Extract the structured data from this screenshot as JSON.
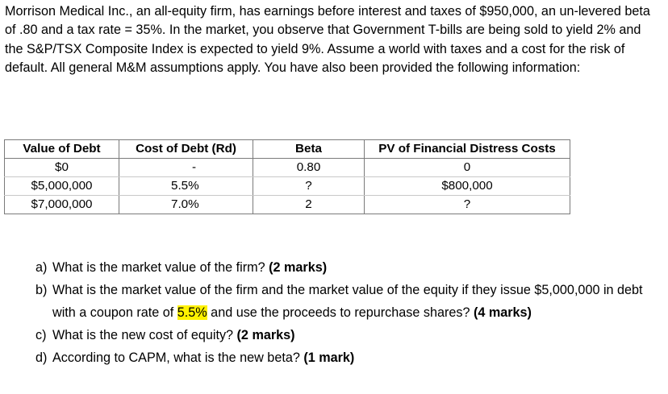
{
  "intro": "Morrison Medical Inc., an all-equity firm, has earnings before interest and taxes of $950,000, an un-levered beta of .80 and a tax rate = 35%.  In the market, you observe that Government T-bills are being sold to yield 2% and the S&P/TSX Composite Index is expected to yield 9%.  Assume a world with taxes and a cost for the risk of default.  All general M&M assumptions apply. You have also been provided the following information:",
  "table": {
    "headers": [
      "Value of Debt",
      "Cost of Debt (Rd)",
      "Beta",
      "PV of Financial Distress Costs"
    ],
    "rows": [
      [
        "$0",
        "-",
        "0.80",
        "0"
      ],
      [
        "$5,000,000",
        "5.5%",
        "?",
        "$800,000"
      ],
      [
        "$7,000,000",
        "7.0%",
        "2",
        "?"
      ]
    ]
  },
  "questions": [
    {
      "letter": "a)",
      "text": "What is the market value of the firm? ",
      "marks": "(2 marks)"
    },
    {
      "letter": "b)",
      "text_before": "What is the market value of the firm and the market value of the equity if they issue $5,000,000 in debt with a coupon rate of ",
      "highlight": "5.5%",
      "text_after": " and use the proceeds to repurchase shares? ",
      "marks": "(4 marks)"
    },
    {
      "letter": "c)",
      "text": "What is the new cost of equity? ",
      "marks": "(2 marks)"
    },
    {
      "letter": "d)",
      "text": "According to CAPM, what is the new beta? ",
      "marks": "(1 mark)"
    }
  ],
  "colors": {
    "highlight": "#fff200",
    "table_border": "#7a7a7a"
  }
}
